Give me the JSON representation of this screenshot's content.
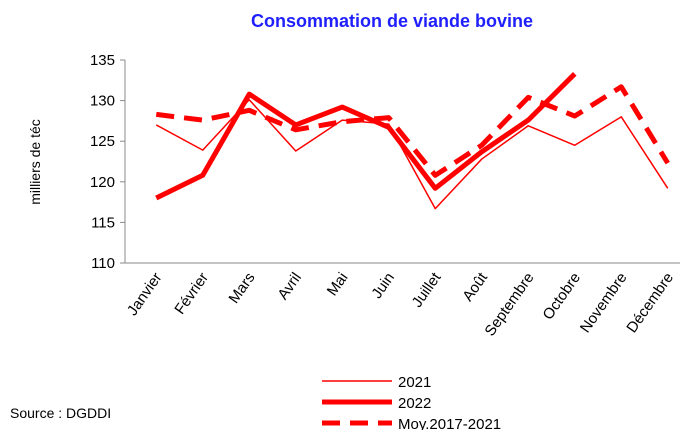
{
  "chart_data": {
    "type": "line",
    "title": "Consommation de viande bovine",
    "y_label": "milliers de téc",
    "source": "Source : DGDDI",
    "categories": [
      "Janvier",
      "Février",
      "Mars",
      "Avril",
      "Mai",
      "Juin",
      "Juillet",
      "Août",
      "Septembre",
      "Octobre",
      "Novembre",
      "Décembre"
    ],
    "series": [
      {
        "name": "2021",
        "color": "#ff0000",
        "width": 1.5,
        "dashed": false,
        "values": [
          127.0,
          123.9,
          130.1,
          123.8,
          127.6,
          127.1,
          116.7,
          122.8,
          126.9,
          124.5,
          128.0,
          119.2
        ]
      },
      {
        "name": "2022",
        "color": "#ff0000",
        "width": 5,
        "dashed": false,
        "values": [
          118.0,
          120.8,
          130.8,
          127.0,
          129.2,
          126.7,
          119.2,
          123.7,
          127.6,
          133.3,
          null,
          null
        ]
      },
      {
        "name": "Moy.2017-2021",
        "color": "#ff0000",
        "width": 5,
        "dashed": true,
        "values": [
          128.3,
          127.6,
          128.8,
          126.4,
          127.4,
          127.9,
          120.8,
          124.5,
          130.4,
          128.1,
          131.7,
          122.3
        ]
      }
    ],
    "ylim": [
      110,
      135
    ],
    "yticks": [
      110,
      115,
      120,
      125,
      130,
      135
    ],
    "grid": false
  }
}
